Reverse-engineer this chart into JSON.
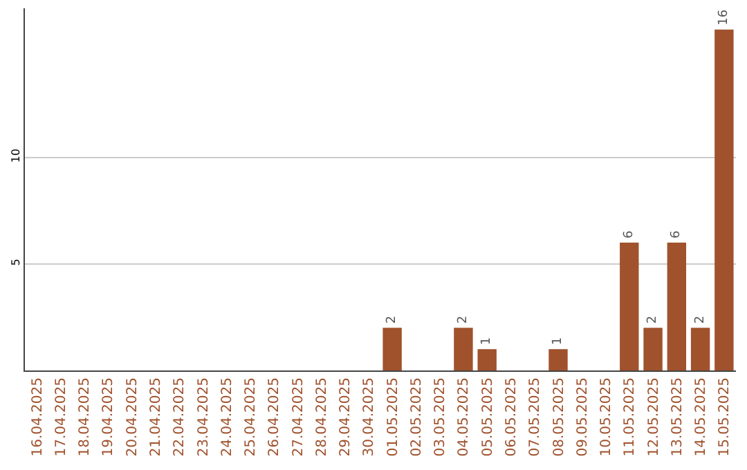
{
  "chart_data": {
    "type": "bar",
    "categories": [
      "16.04.2025",
      "17.04.2025",
      "18.04.2025",
      "19.04.2025",
      "20.04.2025",
      "21.04.2025",
      "22.04.2025",
      "23.04.2025",
      "24.04.2025",
      "25.04.2025",
      "26.04.2025",
      "27.04.2025",
      "28.04.2025",
      "29.04.2025",
      "30.04.2025",
      "01.05.2025",
      "02.05.2025",
      "03.05.2025",
      "04.05.2025",
      "05.05.2025",
      "06.05.2025",
      "07.05.2025",
      "08.05.2025",
      "09.05.2025",
      "10.05.2025",
      "11.05.2025",
      "12.05.2025",
      "13.05.2025",
      "14.05.2025",
      "15.05.2025"
    ],
    "values": [
      null,
      null,
      null,
      null,
      null,
      null,
      null,
      null,
      null,
      null,
      null,
      null,
      null,
      null,
      null,
      2,
      null,
      null,
      2,
      1,
      null,
      null,
      1,
      null,
      null,
      6,
      2,
      6,
      2,
      16
    ],
    "color": "#a0522d",
    "ylim": [
      0,
      17
    ],
    "yticks": [
      5,
      10
    ],
    "grid": "y",
    "data_labels": true
  }
}
